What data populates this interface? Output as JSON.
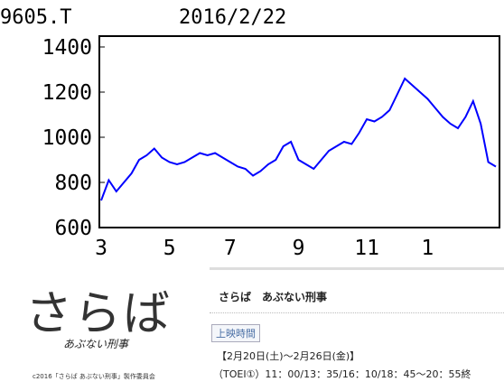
{
  "chart_data": {
    "type": "line",
    "title": "9605.T",
    "subtitle": "2016/2/22",
    "categories": [
      "3",
      null,
      null,
      null,
      null,
      null,
      null,
      null,
      null,
      "5",
      null,
      null,
      null,
      null,
      null,
      null,
      null,
      "7",
      null,
      null,
      null,
      null,
      null,
      null,
      null,
      null,
      "9",
      null,
      null,
      null,
      null,
      null,
      null,
      null,
      null,
      "11",
      null,
      null,
      null,
      null,
      null,
      null,
      null,
      "1",
      null,
      null,
      null,
      null,
      null,
      null,
      null,
      null,
      null
    ],
    "series": [
      {
        "name": "9605.T",
        "color": "#0000ff",
        "values": [
          720,
          810,
          760,
          800,
          840,
          900,
          920,
          950,
          910,
          890,
          880,
          890,
          910,
          930,
          920,
          930,
          910,
          890,
          870,
          860,
          830,
          850,
          880,
          900,
          960,
          980,
          900,
          880,
          860,
          900,
          940,
          960,
          980,
          970,
          1020,
          1080,
          1070,
          1090,
          1120,
          1190,
          1260,
          1230,
          1200,
          1170,
          1130,
          1090,
          1060,
          1040,
          1090,
          1160,
          1060,
          890,
          870
        ]
      }
    ],
    "ylim": [
      600,
      1400
    ],
    "yticks": [
      600,
      800,
      1000,
      1200,
      1400
    ],
    "grid": false
  },
  "movie": {
    "logo": "さらば",
    "logo_sub": "あぶない刑事",
    "copyright": "c2016「さらば あぶない刑事」製作委員会",
    "title": "さらば　あぶない刑事",
    "button": "上映時間",
    "dates": "【2月20日(土)～2月26日(金)】",
    "schedule": "（TOEI①）11：00/13：35/16：10/18：45～20：55終"
  }
}
